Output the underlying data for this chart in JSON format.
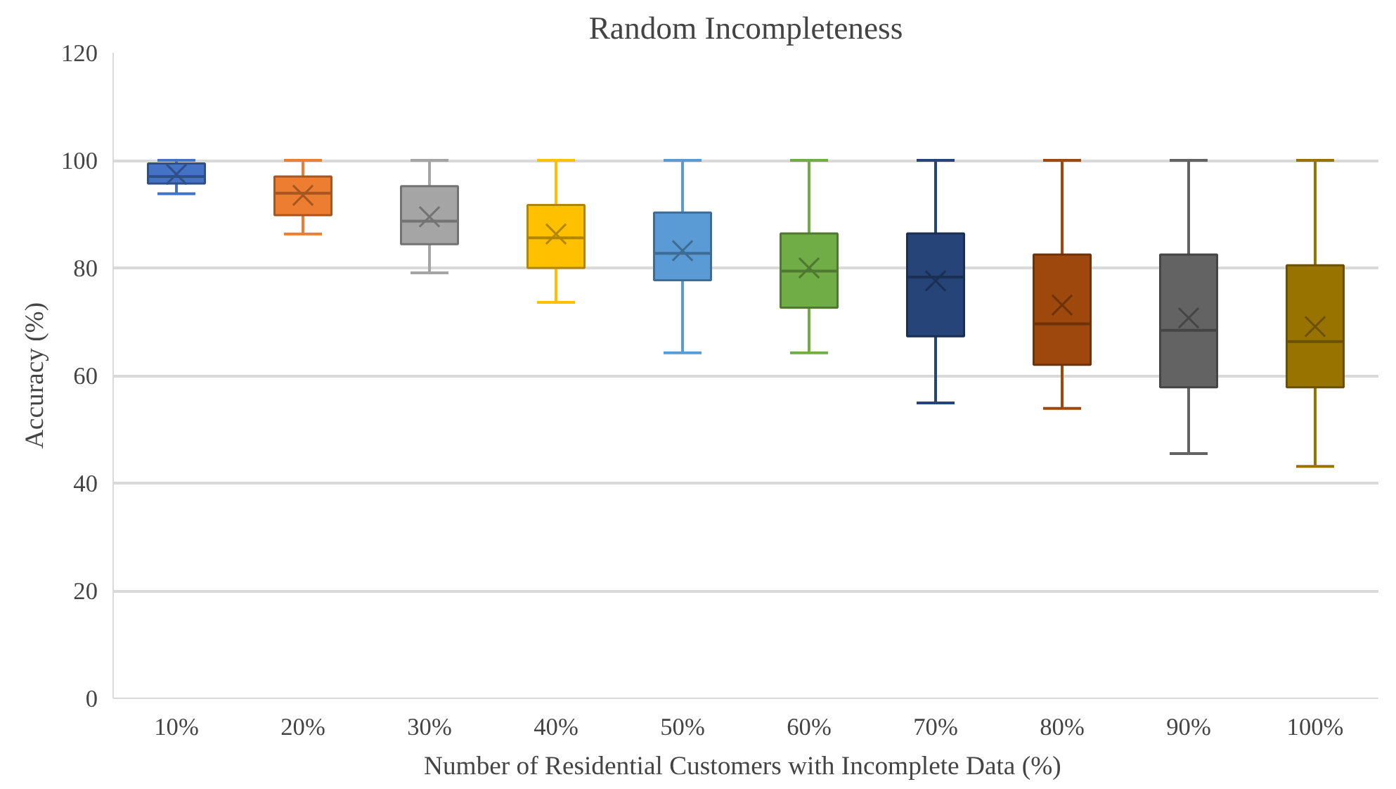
{
  "chart_data": {
    "type": "box",
    "title": "Random Incompleteness",
    "xlabel": "Number of Residential  Customers with Incomplete Data (%)",
    "ylabel": "Accuracy (%)",
    "categories": [
      "10%",
      "20%",
      "30%",
      "40%",
      "50%",
      "60%",
      "70%",
      "80%",
      "90%",
      "100%"
    ],
    "colors": [
      "#4472c4",
      "#ed7d31",
      "#a5a5a5",
      "#ffc000",
      "#5b9bd5",
      "#70ad47",
      "#264478",
      "#9e480e",
      "#636363",
      "#997300"
    ],
    "boxes": [
      {
        "low": 93.8,
        "q1": 95.7,
        "median": 97,
        "q3": 99.4,
        "high": 100,
        "mean": 97.4
      },
      {
        "low": 86.3,
        "q1": 89.8,
        "median": 93.9,
        "q3": 97,
        "high": 100,
        "mean": 93.5
      },
      {
        "low": 79.1,
        "q1": 84.4,
        "median": 88.7,
        "q3": 95.2,
        "high": 100,
        "mean": 89.5
      },
      {
        "low": 73.6,
        "q1": 80,
        "median": 85.6,
        "q3": 91.7,
        "high": 100,
        "mean": 86.3
      },
      {
        "low": 64.2,
        "q1": 77.7,
        "median": 82.7,
        "q3": 90.3,
        "high": 100,
        "mean": 83.2
      },
      {
        "low": 64.2,
        "q1": 72.6,
        "median": 79.4,
        "q3": 86.4,
        "high": 100,
        "mean": 80
      },
      {
        "low": 54.9,
        "q1": 67.3,
        "median": 78.3,
        "q3": 86.4,
        "high": 100,
        "mean": 77.6
      },
      {
        "low": 53.9,
        "q1": 62,
        "median": 69.6,
        "q3": 82.5,
        "high": 100,
        "mean": 73.1
      },
      {
        "low": 45.5,
        "q1": 57.8,
        "median": 68.4,
        "q3": 82.5,
        "high": 100,
        "mean": 70.7
      },
      {
        "low": 43.1,
        "q1": 57.8,
        "median": 66.3,
        "q3": 80.5,
        "high": 100,
        "mean": 69.1
      }
    ],
    "ylim": [
      0,
      120
    ],
    "yticks": [
      0,
      20,
      40,
      60,
      80,
      100,
      120
    ],
    "grid": "y",
    "marker": "cross"
  }
}
